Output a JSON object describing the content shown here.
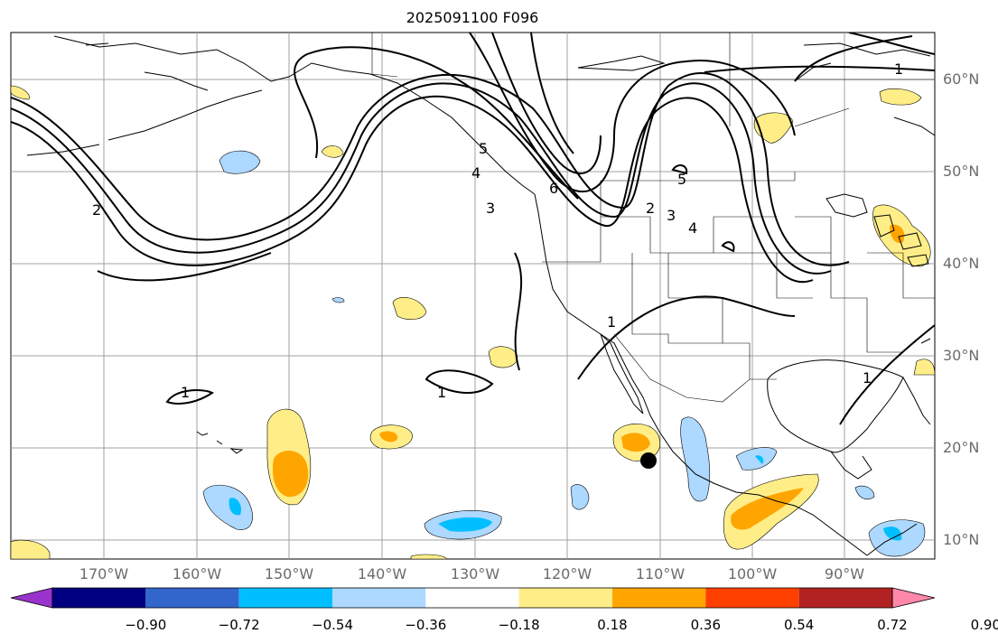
{
  "title": "2025091100 F096",
  "lat_labels": [
    "60°N",
    "50°N",
    "40°N",
    "30°N",
    "20°N",
    "10°N"
  ],
  "lon_labels": [
    "170°W",
    "160°W",
    "150°W",
    "140°W",
    "130°W",
    "120°W",
    "110°W",
    "100°W",
    "90°W"
  ],
  "contour_labels": [
    "1",
    "2",
    "3",
    "4",
    "5",
    "6",
    "1",
    "2",
    "3",
    "4",
    "5",
    "1",
    "1",
    "1"
  ],
  "colorbar": {
    "ticks": [
      "−0.90",
      "−0.72",
      "−0.54",
      "−0.36",
      "−0.18",
      "0.18",
      "0.36",
      "0.54",
      "0.72",
      "0.90"
    ],
    "colors": [
      "#9933cc",
      "#000080",
      "#3366cc",
      "#00bfff",
      "#add8ff",
      "#ffffff",
      "#ffee88",
      "#ffa500",
      "#ff4000",
      "#b22222",
      "#ff88aa"
    ]
  },
  "colors": {
    "land_outline": "#000000",
    "grid": "#a0a0a0",
    "contour": "#000000"
  }
}
